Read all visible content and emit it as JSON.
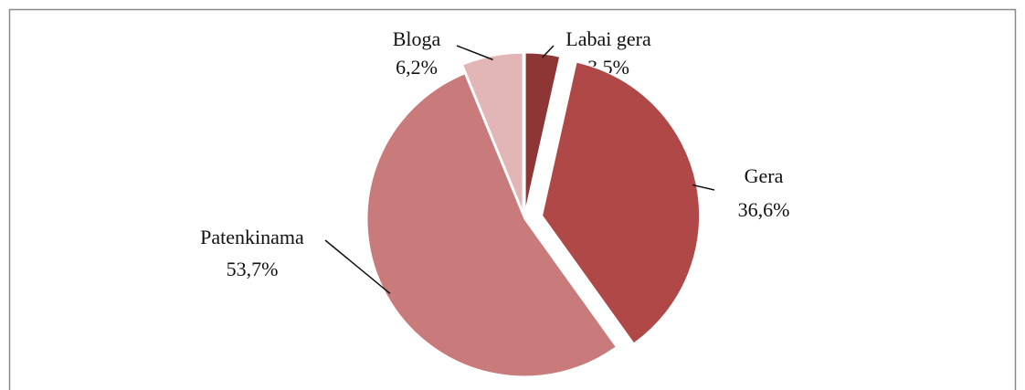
{
  "chart_data": {
    "type": "pie",
    "categories": [
      "Labai gera",
      "Gera",
      "Patenkinama",
      "Bloga"
    ],
    "values": [
      3.5,
      36.6,
      53.7,
      6.2
    ],
    "value_labels": [
      "3,5%",
      "36,6%",
      "53,7%",
      "6,2%"
    ],
    "colors": [
      "#8e3636",
      "#b04848",
      "#c97b7b",
      "#e2b6b6"
    ]
  }
}
